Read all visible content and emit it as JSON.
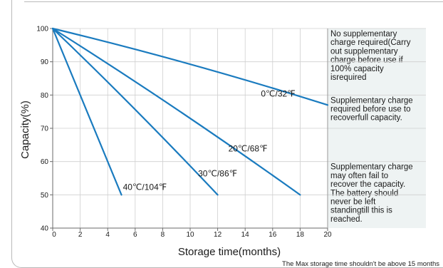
{
  "chart_data": {
    "type": "line",
    "xlabel": "Storage time(months)",
    "ylabel": "Capacity(%)",
    "xlim": [
      0,
      20
    ],
    "ylim": [
      40,
      100
    ],
    "x_ticks": [
      0,
      2,
      4,
      6,
      8,
      10,
      12,
      14,
      16,
      18,
      20
    ],
    "y_ticks": [
      40,
      50,
      60,
      70,
      80,
      90,
      100
    ],
    "grid": true,
    "series": [
      {
        "name": "0℃/32℉",
        "color": "#1a7bbf",
        "x": [
          0,
          20
        ],
        "y": [
          100,
          77
        ]
      },
      {
        "name": "20℃/68℉",
        "color": "#1a7bbf",
        "x": [
          0,
          18
        ],
        "y": [
          100,
          50
        ]
      },
      {
        "name": "30℃/86℉",
        "color": "#1a7bbf",
        "x": [
          0,
          12
        ],
        "y": [
          100,
          50
        ]
      },
      {
        "name": "40℃/104℉",
        "color": "#1a7bbf",
        "x": [
          0,
          5
        ],
        "y": [
          100,
          50
        ]
      }
    ],
    "zones": [
      {
        "y_range": [
          80,
          100
        ],
        "note": [
          "No supplementary",
          "charge required(Carry",
          "out supplementary",
          "charge before use if",
          "100% capacity",
          "isrequired"
        ]
      },
      {
        "y_range": [
          60,
          80
        ],
        "note": [
          "Supplementary charge",
          "required before use to",
          "recoverfull capacity."
        ]
      },
      {
        "y_range": [
          40,
          60
        ],
        "note": [
          "Supplementary charge",
          "may often fail to",
          "recover the capacity.",
          "The battery should",
          "never be left",
          "standingtill this is",
          "reached."
        ]
      }
    ],
    "footnote": "The Max storage time shouldn't be above 15 months"
  }
}
